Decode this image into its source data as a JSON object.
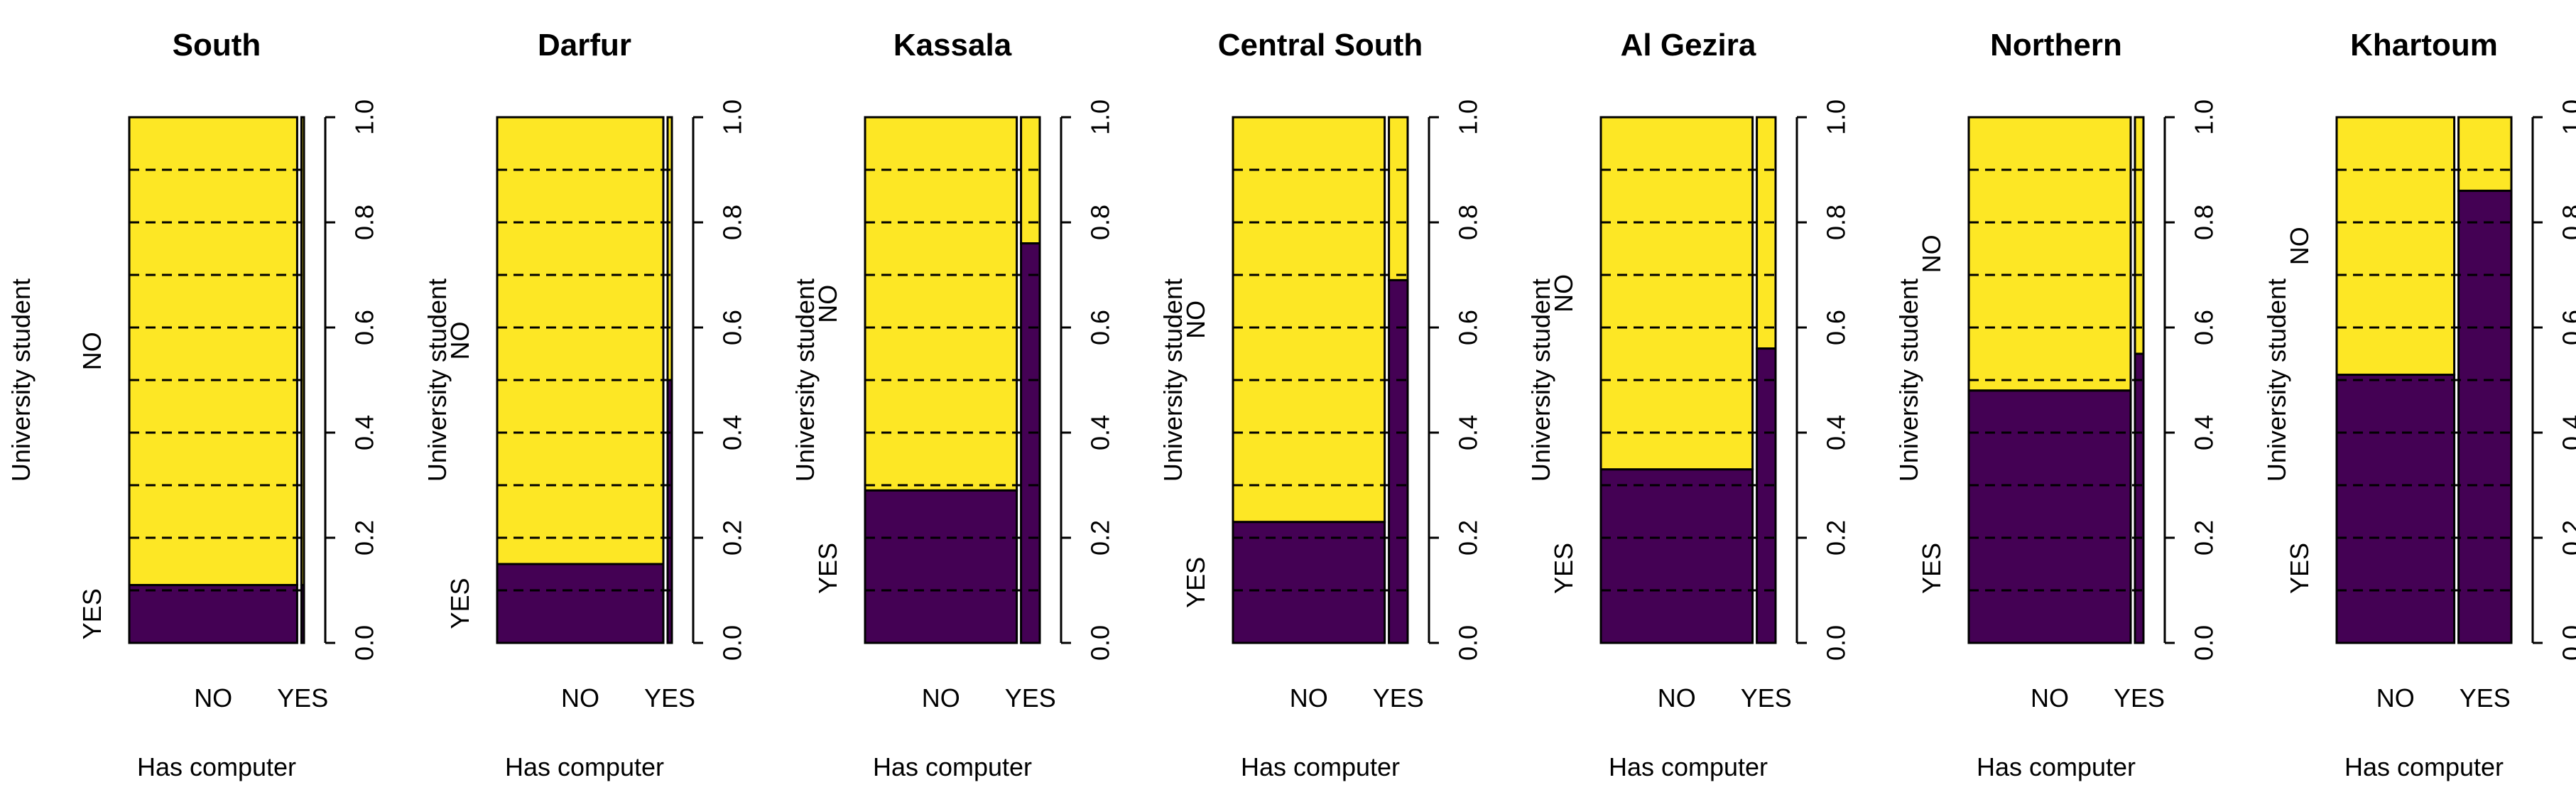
{
  "chart_data": {
    "type": "mosaic",
    "y_axis_label": "University student",
    "x_axis_label": "Has computer",
    "x_categories": [
      "NO",
      "YES"
    ],
    "y_categories": [
      "YES",
      "NO"
    ],
    "right_axis_ticks": [
      "0.0",
      "0.2",
      "0.4",
      "0.6",
      "0.8",
      "1.0"
    ],
    "colors": {
      "YES": "#440154",
      "NO": "#FDE725",
      "grid": "#000000"
    },
    "panels": [
      {
        "title": "South",
        "has_computer_share": [
          0.985,
          0.015
        ],
        "university_yes_share": [
          0.11,
          0.11
        ]
      },
      {
        "title": "Darfur",
        "has_computer_share": [
          0.975,
          0.025
        ],
        "university_yes_share": [
          0.15,
          0.5
        ]
      },
      {
        "title": "Kassala",
        "has_computer_share": [
          0.89,
          0.11
        ],
        "university_yes_share": [
          0.29,
          0.76
        ]
      },
      {
        "title": "Central South",
        "has_computer_share": [
          0.89,
          0.11
        ],
        "university_yes_share": [
          0.23,
          0.69
        ]
      },
      {
        "title": "Al Gezira",
        "has_computer_share": [
          0.89,
          0.11
        ],
        "university_yes_share": [
          0.33,
          0.56
        ]
      },
      {
        "title": "Northern",
        "has_computer_share": [
          0.95,
          0.05
        ],
        "university_yes_share": [
          0.48,
          0.55
        ]
      },
      {
        "title": "Khartoum",
        "has_computer_share": [
          0.69,
          0.31
        ],
        "university_yes_share": [
          0.51,
          0.86
        ]
      }
    ]
  }
}
